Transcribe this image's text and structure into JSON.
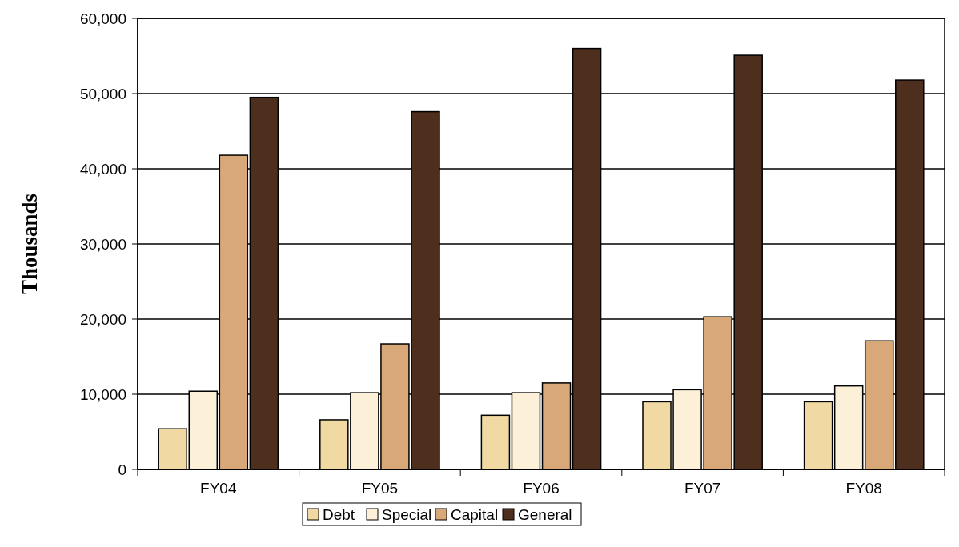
{
  "chart_data": {
    "type": "bar",
    "ylabel": "Thousands",
    "categories": [
      "FY04",
      "FY05",
      "FY06",
      "FY07",
      "FY08"
    ],
    "series": [
      {
        "name": "Debt",
        "color": "#f0d9a2",
        "values": [
          5400,
          6600,
          7200,
          9000,
          9000
        ]
      },
      {
        "name": "Special",
        "color": "#fcf0d8",
        "values": [
          10400,
          10200,
          10200,
          10600,
          11100
        ]
      },
      {
        "name": "Capital",
        "color": "#d8a878",
        "values": [
          41800,
          16700,
          11500,
          20300,
          17100
        ]
      },
      {
        "name": "General",
        "color": "#4e2e1c",
        "values": [
          49500,
          47600,
          56000,
          55100,
          51800
        ]
      }
    ],
    "ylim": [
      0,
      60000
    ],
    "yticks": [
      {
        "value": 0,
        "label": "0"
      },
      {
        "value": 10000,
        "label": "10,000"
      },
      {
        "value": 20000,
        "label": "20,000"
      },
      {
        "value": 30000,
        "label": "30,000"
      },
      {
        "value": 40000,
        "label": "40,000"
      },
      {
        "value": 50000,
        "label": "50,000"
      },
      {
        "value": 60000,
        "label": "60,000"
      }
    ],
    "grid": "y",
    "legend": "bottom"
  }
}
